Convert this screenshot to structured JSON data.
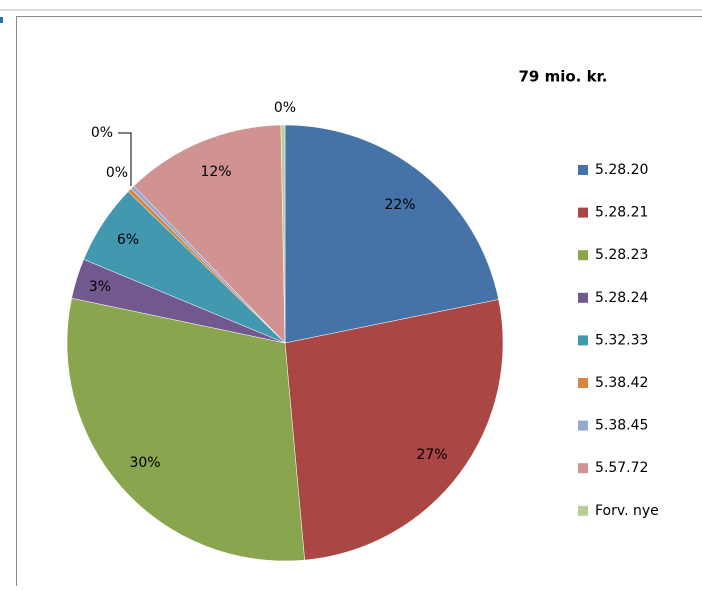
{
  "chart_data": {
    "type": "pie",
    "title": "79 mio. kr.",
    "categories": [
      "5.28.20",
      "5.28.21",
      "5.28.23",
      "5.28.24",
      "5.32.33",
      "5.38.42",
      "5.38.45",
      "5.57.72",
      "Forv. nye"
    ],
    "values": [
      22,
      27,
      30,
      3,
      6,
      0.3,
      0.3,
      12,
      0.3
    ],
    "value_labels": [
      "22%",
      "27%",
      "30%",
      "3%",
      "6%",
      "0%",
      "0%",
      "12%",
      "0%"
    ],
    "colors": [
      "#4572a7",
      "#aa4643",
      "#89a54e",
      "#71588f",
      "#4198af",
      "#db843d",
      "#93a9cf",
      "#d19392",
      "#b9cd96"
    ],
    "legend": "right"
  }
}
